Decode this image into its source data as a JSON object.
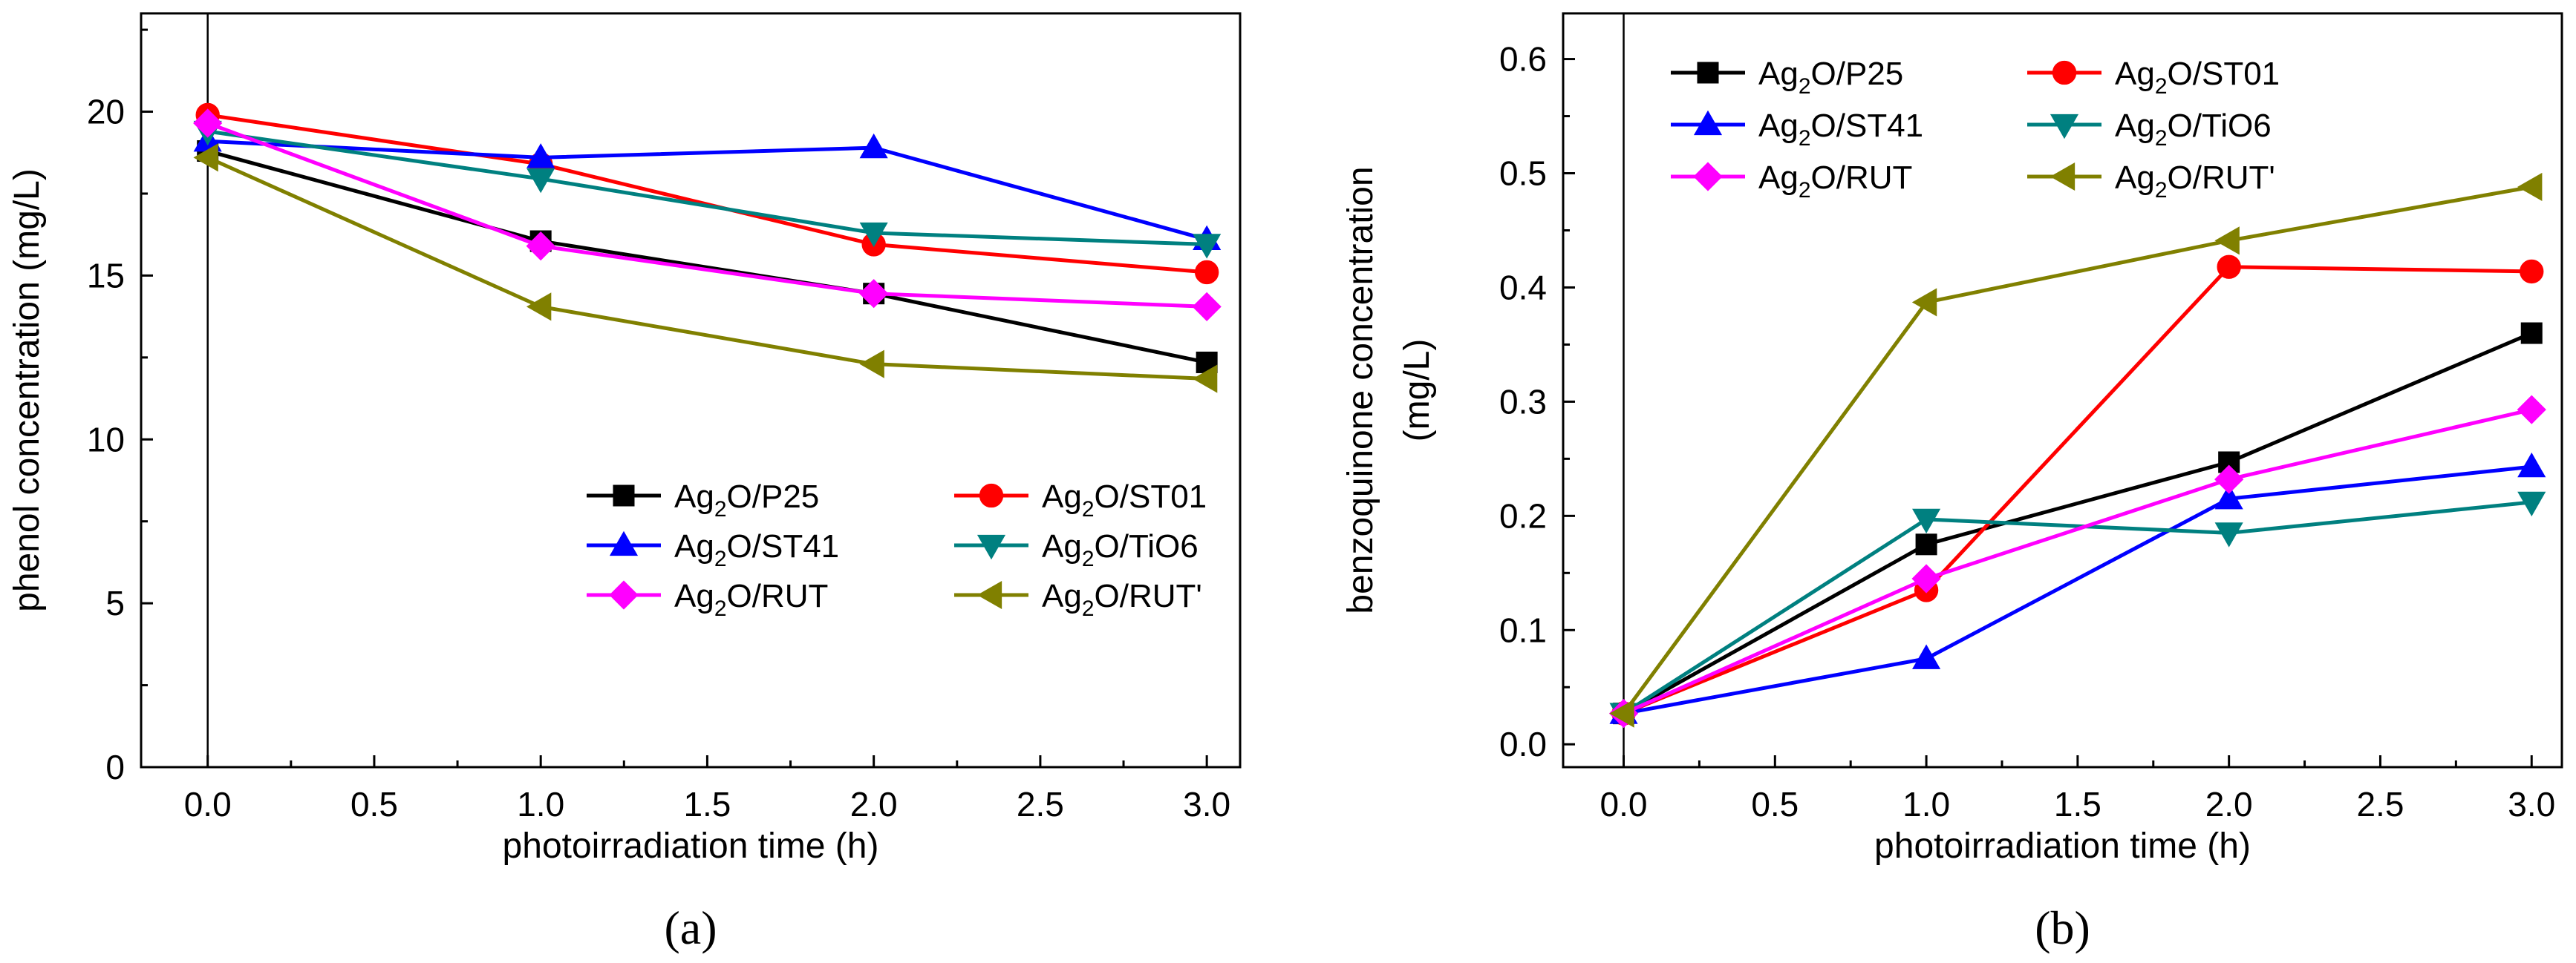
{
  "chart_data": [
    {
      "type": "line",
      "panel_label": "(a)",
      "xlabel": "photoirradiation time (h)",
      "ylabel": "phenol concentration (mg/L)",
      "xlim": [
        -0.2,
        3.1
      ],
      "ylim": [
        0,
        23
      ],
      "xticks": [
        0.0,
        0.5,
        1.0,
        1.5,
        2.0,
        2.5,
        3.0
      ],
      "xtick_labels": [
        "0.0",
        "0.5",
        "1.0",
        "1.5",
        "2.0",
        "2.5",
        "3.0"
      ],
      "yticks": [
        0,
        5,
        10,
        15,
        20
      ],
      "ytick_labels": [
        "0",
        "5",
        "10",
        "15",
        "20"
      ],
      "vline_x": 0.0,
      "legend_position": "lower-right",
      "series": [
        {
          "name": "Ag2O/P25",
          "label_pre": "Ag",
          "label_sub": "2",
          "label_post": "O/P25",
          "color": "#000000",
          "marker": "square",
          "x": [
            0,
            1,
            2,
            3
          ],
          "y": [
            18.8,
            16.05,
            14.45,
            12.35
          ]
        },
        {
          "name": "Ag2O/ST01",
          "label_pre": "Ag",
          "label_sub": "2",
          "label_post": "O/ST01",
          "color": "#ff0000",
          "marker": "circle",
          "x": [
            0,
            1,
            2,
            3
          ],
          "y": [
            19.9,
            18.4,
            15.95,
            15.1
          ]
        },
        {
          "name": "Ag2O/ST41",
          "label_pre": "Ag",
          "label_sub": "2",
          "label_post": "O/ST41",
          "color": "#0000ff",
          "marker": "triangle-up",
          "x": [
            0,
            1,
            2,
            3
          ],
          "y": [
            19.1,
            18.6,
            18.9,
            16.1
          ]
        },
        {
          "name": "Ag2O/TiO6",
          "label_pre": "Ag",
          "label_sub": "2",
          "label_post": "O/TiO6",
          "color": "#008080",
          "marker": "triangle-down",
          "x": [
            0,
            1,
            2,
            3
          ],
          "y": [
            19.4,
            17.95,
            16.3,
            15.95
          ]
        },
        {
          "name": "Ag2O/RUT",
          "label_pre": "Ag",
          "label_sub": "2",
          "label_post": "O/RUT",
          "color": "#ff00ff",
          "marker": "diamond",
          "x": [
            0,
            1,
            2,
            3
          ],
          "y": [
            19.65,
            15.9,
            14.45,
            14.05
          ]
        },
        {
          "name": "Ag2O/RUT'",
          "label_pre": "Ag",
          "label_sub": "2",
          "label_post": "O/RUT'",
          "color": "#808000",
          "marker": "triangle-left",
          "x": [
            0,
            1,
            2,
            3
          ],
          "y": [
            18.6,
            14.05,
            12.3,
            11.85
          ]
        }
      ]
    },
    {
      "type": "line",
      "panel_label": "(b)",
      "xlabel": "photoirradiation time (h)",
      "ylabel_lines": [
        "benzoquinone concentration",
        "(mg/L)"
      ],
      "xlim": [
        -0.2,
        3.1
      ],
      "ylim": [
        -0.02,
        0.64
      ],
      "xticks": [
        0.0,
        0.5,
        1.0,
        1.5,
        2.0,
        2.5,
        3.0
      ],
      "xtick_labels": [
        "0.0",
        "0.5",
        "1.0",
        "1.5",
        "2.0",
        "2.5",
        "3.0"
      ],
      "yticks": [
        0.0,
        0.1,
        0.2,
        0.3,
        0.4,
        0.5,
        0.6
      ],
      "ytick_labels": [
        "0.0",
        "0.1",
        "0.2",
        "0.3",
        "0.4",
        "0.5",
        "0.6"
      ],
      "vline_x": 0.0,
      "legend_position": "top-left",
      "series": [
        {
          "name": "Ag2O/P25",
          "label_pre": "Ag",
          "label_sub": "2",
          "label_post": "O/P25",
          "color": "#000000",
          "marker": "square",
          "x": [
            0,
            1,
            2,
            3
          ],
          "y": [
            0.027,
            0.175,
            0.247,
            0.36
          ]
        },
        {
          "name": "Ag2O/ST01",
          "label_pre": "Ag",
          "label_sub": "2",
          "label_post": "O/ST01",
          "color": "#ff0000",
          "marker": "circle",
          "x": [
            0,
            1,
            2,
            3
          ],
          "y": [
            0.027,
            0.135,
            0.418,
            0.414
          ]
        },
        {
          "name": "Ag2O/ST41",
          "label_pre": "Ag",
          "label_sub": "2",
          "label_post": "O/ST41",
          "color": "#0000ff",
          "marker": "triangle-up",
          "x": [
            0,
            1,
            2,
            3
          ],
          "y": [
            0.027,
            0.075,
            0.215,
            0.243
          ]
        },
        {
          "name": "Ag2O/TiO6",
          "label_pre": "Ag",
          "label_sub": "2",
          "label_post": "O/TiO6",
          "color": "#008080",
          "marker": "triangle-down",
          "x": [
            0,
            1,
            2,
            3
          ],
          "y": [
            0.027,
            0.197,
            0.185,
            0.212
          ]
        },
        {
          "name": "Ag2O/RUT",
          "label_pre": "Ag",
          "label_sub": "2",
          "label_post": "O/RUT",
          "color": "#ff00ff",
          "marker": "diamond",
          "x": [
            0,
            1,
            2,
            3
          ],
          "y": [
            0.027,
            0.145,
            0.232,
            0.293
          ]
        },
        {
          "name": "Ag2O/RUT'",
          "label_pre": "Ag",
          "label_sub": "2",
          "label_post": "O/RUT'",
          "color": "#808000",
          "marker": "triangle-left",
          "x": [
            0,
            1,
            2,
            3
          ],
          "y": [
            0.027,
            0.387,
            0.441,
            0.488
          ]
        }
      ]
    }
  ]
}
